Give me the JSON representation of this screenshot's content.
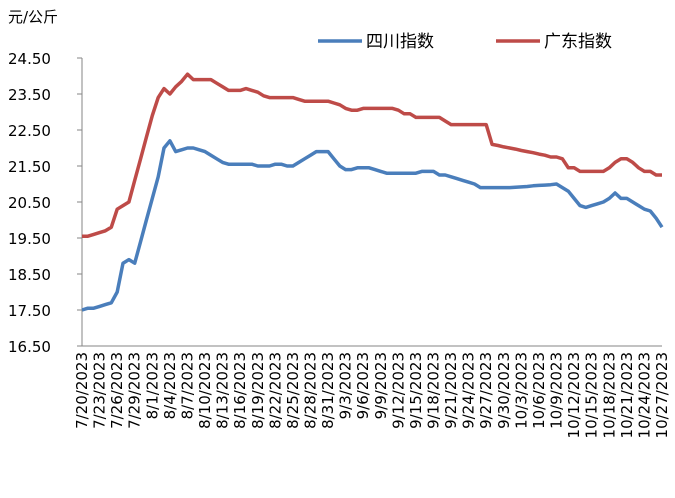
{
  "chart_data": {
    "type": "line",
    "y_label": "元/公斤",
    "categories": [
      "7/20/2023",
      null,
      null,
      "7/23/2023",
      null,
      null,
      "7/26/2023",
      null,
      null,
      "7/29/2023",
      null,
      null,
      "8/1/2023",
      null,
      null,
      "8/4/2023",
      null,
      null,
      "8/7/2023",
      null,
      null,
      "8/10/2023",
      null,
      null,
      "8/13/2023",
      null,
      null,
      "8/16/2023",
      null,
      null,
      "8/19/2023",
      null,
      null,
      "8/22/2023",
      null,
      null,
      "8/25/2023",
      null,
      null,
      "8/28/2023",
      null,
      null,
      "8/31/2023",
      null,
      null,
      "9/3/2023",
      null,
      null,
      "9/6/2023",
      null,
      null,
      "9/9/2023",
      null,
      null,
      "9/12/2023",
      null,
      null,
      "9/15/2023",
      null,
      null,
      "9/18/2023",
      null,
      null,
      "9/21/2023",
      null,
      null,
      "9/24/2023",
      null,
      null,
      "9/27/2023",
      null,
      null,
      "9/30/2023",
      null,
      null,
      "10/3/2023",
      null,
      null,
      "10/6/2023",
      null,
      null,
      "10/9/2023",
      null,
      null,
      "10/12/2023",
      null,
      null,
      "10/15/2023",
      null,
      null,
      "10/18/2023",
      null,
      null,
      "10/21/2023",
      null,
      null,
      "10/24/2023",
      null,
      null,
      "10/27/2023"
    ],
    "series": [
      {
        "name": "四川指数",
        "color": "#4a7ebb",
        "values": [
          17.5,
          17.55,
          17.55,
          17.6,
          17.65,
          17.7,
          18.0,
          18.8,
          18.9,
          18.8,
          19.4,
          20.0,
          20.6,
          21.2,
          22.0,
          22.2,
          21.9,
          21.95,
          22.0,
          22.0,
          21.95,
          21.9,
          21.8,
          21.7,
          21.6,
          21.55,
          21.55,
          21.55,
          21.55,
          21.55,
          21.5,
          21.5,
          21.5,
          21.55,
          21.55,
          21.5,
          21.5,
          21.6,
          21.7,
          21.8,
          21.9,
          21.9,
          21.9,
          21.7,
          21.5,
          21.4,
          21.4,
          21.45,
          21.45,
          21.45,
          21.4,
          21.35,
          21.3,
          21.3,
          21.3,
          21.3,
          21.3,
          21.3,
          21.35,
          21.35,
          21.35,
          21.25,
          21.25,
          21.2,
          21.15,
          21.1,
          21.05,
          21.0,
          20.9,
          20.9,
          20.9,
          20.9,
          20.9,
          20.9,
          20.91,
          20.92,
          20.93,
          20.95,
          20.96,
          20.97,
          20.98,
          21.0,
          20.9,
          20.8,
          20.6,
          20.4,
          20.35,
          20.4,
          20.45,
          20.5,
          20.6,
          20.75,
          20.6,
          20.6,
          20.5,
          20.4,
          20.3,
          20.25,
          20.05,
          19.8
        ]
      },
      {
        "name": "广东指数",
        "color": "#be4b48",
        "values": [
          19.55,
          19.55,
          19.6,
          19.65,
          19.7,
          19.8,
          20.3,
          20.4,
          20.5,
          21.1,
          21.7,
          22.3,
          22.9,
          23.4,
          23.65,
          23.5,
          23.7,
          23.85,
          24.05,
          23.9,
          23.9,
          23.9,
          23.9,
          23.8,
          23.7,
          23.6,
          23.6,
          23.6,
          23.65,
          23.6,
          23.55,
          23.45,
          23.4,
          23.4,
          23.4,
          23.4,
          23.4,
          23.35,
          23.3,
          23.3,
          23.3,
          23.3,
          23.3,
          23.25,
          23.2,
          23.1,
          23.05,
          23.05,
          23.1,
          23.1,
          23.1,
          23.1,
          23.1,
          23.1,
          23.05,
          22.95,
          22.95,
          22.85,
          22.85,
          22.85,
          22.85,
          22.85,
          22.75,
          22.65,
          22.65,
          22.65,
          22.65,
          22.65,
          22.65,
          22.65,
          22.1,
          22.07,
          22.03,
          22.0,
          21.97,
          21.93,
          21.9,
          21.87,
          21.83,
          21.8,
          21.75,
          21.75,
          21.7,
          21.45,
          21.45,
          21.35,
          21.35,
          21.35,
          21.35,
          21.35,
          21.45,
          21.6,
          21.7,
          21.7,
          21.6,
          21.45,
          21.35,
          21.35,
          21.25,
          21.25
        ]
      }
    ],
    "ylim": [
      16.5,
      24.5
    ],
    "yticks": [
      {
        "value": 16.5,
        "label": "16.50"
      },
      {
        "value": 17.5,
        "label": "17.50"
      },
      {
        "value": 18.5,
        "label": "18.50"
      },
      {
        "value": 19.5,
        "label": "19.50"
      },
      {
        "value": 20.5,
        "label": "20.50"
      },
      {
        "value": 21.5,
        "label": "21.50"
      },
      {
        "value": 22.5,
        "label": "22.50"
      },
      {
        "value": 23.5,
        "label": "23.50"
      },
      {
        "value": 24.5,
        "label": "24.50"
      }
    ],
    "grid": false
  }
}
